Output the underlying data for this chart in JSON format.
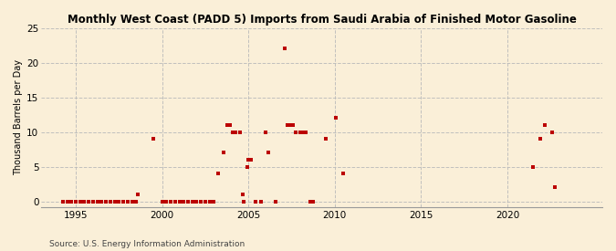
{
  "title": "Monthly West Coast (PADD 5) Imports from Saudi Arabia of Finished Motor Gasoline",
  "ylabel": "Thousand Barrels per Day",
  "source": "Source: U.S. Energy Information Administration",
  "xlim": [
    1993.0,
    2025.5
  ],
  "ylim": [
    -0.8,
    25
  ],
  "yticks": [
    0,
    5,
    10,
    15,
    20,
    25
  ],
  "xticks": [
    1995,
    2000,
    2005,
    2010,
    2015,
    2020
  ],
  "background_color": "#faefd8",
  "plot_background_color": "#faefd8",
  "marker_color": "#bb0000",
  "marker_size": 10,
  "grid_color": "#bbbbbb",
  "data_points": [
    [
      1994.25,
      0
    ],
    [
      1994.5,
      0
    ],
    [
      1994.75,
      0
    ],
    [
      1995.0,
      0
    ],
    [
      1995.25,
      0
    ],
    [
      1995.5,
      0
    ],
    [
      1995.75,
      0
    ],
    [
      1996.0,
      0
    ],
    [
      1996.25,
      0
    ],
    [
      1996.5,
      0
    ],
    [
      1996.75,
      0
    ],
    [
      1997.0,
      0
    ],
    [
      1997.25,
      0
    ],
    [
      1997.5,
      0
    ],
    [
      1997.75,
      0
    ],
    [
      1998.0,
      0
    ],
    [
      1998.25,
      0
    ],
    [
      1998.5,
      0
    ],
    [
      1998.583,
      1
    ],
    [
      1999.5,
      9
    ],
    [
      2000.0,
      0
    ],
    [
      2000.25,
      0
    ],
    [
      2000.5,
      0
    ],
    [
      2000.75,
      0
    ],
    [
      2001.0,
      0
    ],
    [
      2001.25,
      0
    ],
    [
      2001.5,
      0
    ],
    [
      2001.75,
      0
    ],
    [
      2002.0,
      0
    ],
    [
      2002.25,
      0
    ],
    [
      2002.5,
      0
    ],
    [
      2002.75,
      0
    ],
    [
      2003.0,
      0
    ],
    [
      2003.25,
      4
    ],
    [
      2003.583,
      7
    ],
    [
      2003.75,
      11
    ],
    [
      2003.917,
      11
    ],
    [
      2004.083,
      10
    ],
    [
      2004.25,
      10
    ],
    [
      2004.5,
      10
    ],
    [
      2004.667,
      1
    ],
    [
      2004.75,
      0
    ],
    [
      2004.917,
      5
    ],
    [
      2005.0,
      6
    ],
    [
      2005.167,
      6
    ],
    [
      2005.417,
      0
    ],
    [
      2005.75,
      0
    ],
    [
      2006.0,
      10
    ],
    [
      2006.167,
      7
    ],
    [
      2006.583,
      0
    ],
    [
      2007.083,
      22
    ],
    [
      2007.25,
      11
    ],
    [
      2007.417,
      11
    ],
    [
      2007.583,
      11
    ],
    [
      2007.75,
      10
    ],
    [
      2008.0,
      10
    ],
    [
      2008.167,
      10
    ],
    [
      2008.333,
      10
    ],
    [
      2008.583,
      0
    ],
    [
      2008.75,
      0
    ],
    [
      2009.5,
      9
    ],
    [
      2010.083,
      12
    ],
    [
      2010.5,
      4
    ],
    [
      2021.5,
      5
    ],
    [
      2021.917,
      9
    ],
    [
      2022.167,
      11
    ],
    [
      2022.583,
      10
    ],
    [
      2022.75,
      2
    ]
  ]
}
